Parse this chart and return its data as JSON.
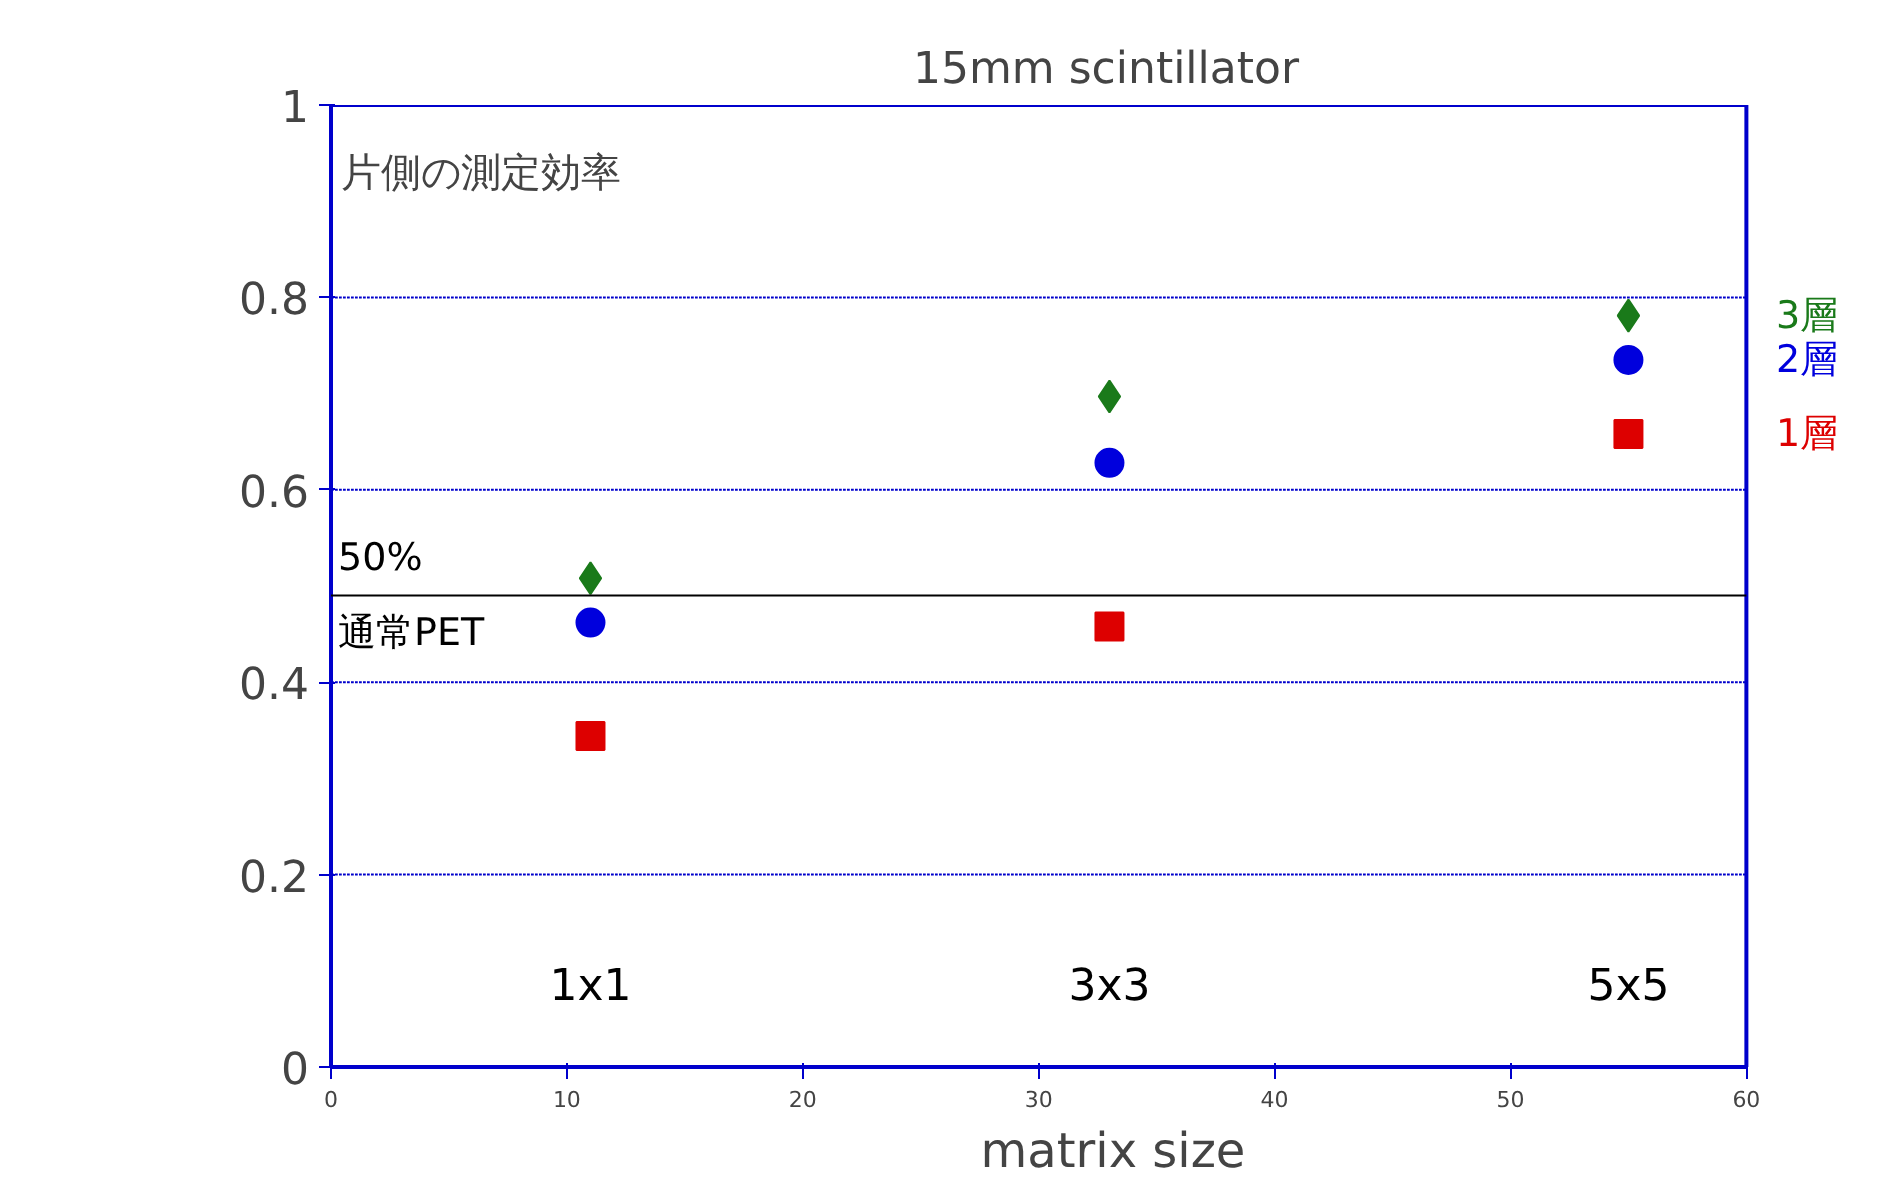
{
  "chart_data": {
    "type": "scatter",
    "title": "15mm  scintillator",
    "xlabel": "matrix size",
    "ylabel": "片側の測定効率",
    "x": [
      11,
      33,
      55
    ],
    "series": [
      {
        "name": "3層",
        "color": "#1a7a1a",
        "marker": "diamond",
        "values": [
          0.508,
          0.697,
          0.781
        ]
      },
      {
        "name": "2層",
        "color": "#0000dd",
        "marker": "circle",
        "values": [
          0.462,
          0.628,
          0.735
        ]
      },
      {
        "name": "1層",
        "color": "#dd0000",
        "marker": "square",
        "values": [
          0.344,
          0.458,
          0.658
        ]
      }
    ],
    "xlim": [
      0,
      60
    ],
    "xticks": [
      0,
      10,
      20,
      30,
      40,
      50,
      60
    ],
    "ylim": [
      0,
      1
    ],
    "yticks": [
      0,
      0.2,
      0.4,
      0.6,
      0.8,
      1
    ],
    "grid": "y",
    "ref_lines": [
      {
        "axis": "y",
        "value": 0.49,
        "label": "50%\n通常PET",
        "color": "#000000"
      }
    ],
    "annotations": [
      "1x1",
      "3x3",
      "5x5"
    ]
  }
}
